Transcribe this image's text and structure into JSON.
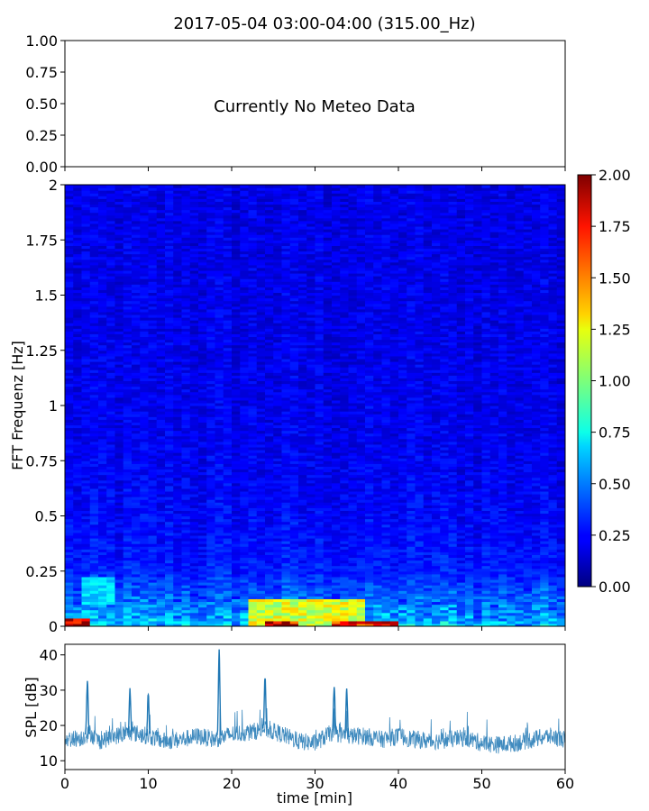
{
  "chart_data": [
    {
      "type": "table",
      "title": "2017-05-04 03:00-04:00 (315.00_Hz)",
      "annotation": "Currently No Meteo Data",
      "ylim": [
        0,
        1
      ],
      "yticks": [
        "0.00",
        "0.25",
        "0.50",
        "0.75",
        "1.00"
      ]
    },
    {
      "type": "heatmap",
      "ylabel": "FFT Frequenz [Hz]",
      "xlim": [
        0,
        60
      ],
      "ylim": [
        0,
        2
      ],
      "yticks": [
        "0",
        "0.25",
        "0.5",
        "0.75",
        "1",
        "1.25",
        "1.5",
        "1.75",
        "2"
      ],
      "colorbar": {
        "range": [
          0,
          2
        ],
        "ticks": [
          "0.00",
          "0.25",
          "0.50",
          "0.75",
          "1.00",
          "1.25",
          "1.50",
          "1.75",
          "2.00"
        ],
        "colormap": "jet"
      },
      "hotspots": [
        {
          "t": [
            0,
            3
          ],
          "f": [
            0,
            0.04
          ],
          "value": 2.0
        },
        {
          "t": [
            2,
            6
          ],
          "f": [
            0.1,
            0.22
          ],
          "value": 0.75
        },
        {
          "t": [
            22,
            36
          ],
          "f": [
            0,
            0.12
          ],
          "value": 1.3
        },
        {
          "t": [
            24,
            28
          ],
          "f": [
            0,
            0.03
          ],
          "value": 2.0
        },
        {
          "t": [
            32,
            40
          ],
          "f": [
            0,
            0.03
          ],
          "value": 1.9
        }
      ]
    },
    {
      "type": "line",
      "xlabel": "time [min]",
      "ylabel": "SPL [dB]",
      "xlim": [
        0,
        60
      ],
      "ylim": [
        7.5,
        43
      ],
      "xticks": [
        "0",
        "10",
        "20",
        "30",
        "40",
        "50",
        "60"
      ],
      "yticks": [
        "10",
        "20",
        "30",
        "40"
      ],
      "color": "#1f77b4",
      "series": [
        {
          "x": [
            0,
            2,
            3,
            4,
            6,
            8,
            10,
            12,
            14,
            16,
            18,
            20,
            22,
            24,
            26,
            28,
            30,
            32,
            34,
            36,
            38,
            40,
            42,
            44,
            46,
            48,
            50,
            52,
            54,
            56,
            58,
            60
          ],
          "values": [
            16,
            16.5,
            18,
            15.5,
            17,
            18,
            17,
            15.5,
            16,
            17,
            16,
            17.5,
            18,
            19,
            17.5,
            15.5,
            15,
            18,
            17,
            17,
            16,
            17,
            16,
            15.5,
            16,
            16.5,
            15,
            14.5,
            15,
            16,
            17,
            16
          ]
        }
      ],
      "peaks": [
        {
          "x": 2.7,
          "y": 32
        },
        {
          "x": 7.8,
          "y": 30
        },
        {
          "x": 10,
          "y": 29
        },
        {
          "x": 18.5,
          "y": 41
        },
        {
          "x": 24,
          "y": 34
        },
        {
          "x": 32.3,
          "y": 31
        },
        {
          "x": 33.8,
          "y": 30
        }
      ]
    }
  ]
}
